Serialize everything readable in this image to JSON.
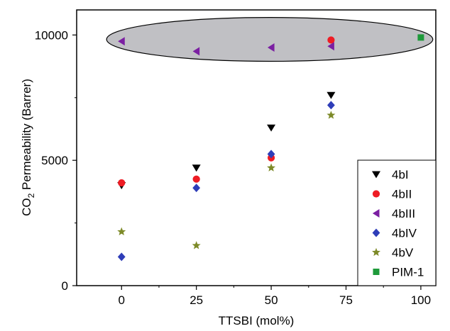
{
  "chart_data": {
    "type": "scatter",
    "xlabel": "TTSBI (mol%)",
    "ylabel": "CO₂ Permeability (Barrer)",
    "ylabel_main": "CO",
    "ylabel_sub": "2",
    "ylabel_rest": " Permeability (Barrer)",
    "xlim": [
      -15,
      105
    ],
    "ylim": [
      0,
      11000
    ],
    "x_ticks": [
      0,
      25,
      50,
      75,
      100
    ],
    "y_ticks": [
      0,
      5000,
      10000
    ],
    "grid": false,
    "legend_position": "bottom-right",
    "series": [
      {
        "name": "4bI",
        "marker": "triangle-down",
        "color": "#000000",
        "points": [
          {
            "x": 0,
            "y": 4000
          },
          {
            "x": 25,
            "y": 4700
          },
          {
            "x": 50,
            "y": 6300
          },
          {
            "x": 70,
            "y": 7600
          }
        ]
      },
      {
        "name": "4bII",
        "marker": "circle",
        "color": "#ee1c24",
        "points": [
          {
            "x": 0,
            "y": 4100
          },
          {
            "x": 25,
            "y": 4250
          },
          {
            "x": 50,
            "y": 5100
          },
          {
            "x": 70,
            "y": 9800
          }
        ]
      },
      {
        "name": "4bIII",
        "marker": "triangle-left",
        "color": "#7b1fa2",
        "points": [
          {
            "x": 0,
            "y": 9750
          },
          {
            "x": 25,
            "y": 9350
          },
          {
            "x": 50,
            "y": 9500
          },
          {
            "x": 70,
            "y": 9550
          }
        ]
      },
      {
        "name": "4bIV",
        "marker": "diamond",
        "color": "#2e3db8",
        "points": [
          {
            "x": 0,
            "y": 1150
          },
          {
            "x": 25,
            "y": 3900
          },
          {
            "x": 50,
            "y": 5250
          },
          {
            "x": 70,
            "y": 7200
          }
        ]
      },
      {
        "name": "4bV",
        "marker": "star",
        "color": "#7d8a28",
        "points": [
          {
            "x": 0,
            "y": 2150
          },
          {
            "x": 25,
            "y": 1600
          },
          {
            "x": 50,
            "y": 4700
          },
          {
            "x": 70,
            "y": 6800
          }
        ]
      },
      {
        "name": "PIM-1",
        "marker": "square",
        "color": "#1e9a3a",
        "points": [
          {
            "x": 100,
            "y": 9900
          }
        ]
      }
    ],
    "annotations": [
      {
        "type": "ellipse",
        "fill": "#c0c0c4",
        "stroke": "#000000",
        "x_range": [
          -5,
          104
        ],
        "y_range": [
          8950,
          10700
        ]
      }
    ]
  }
}
